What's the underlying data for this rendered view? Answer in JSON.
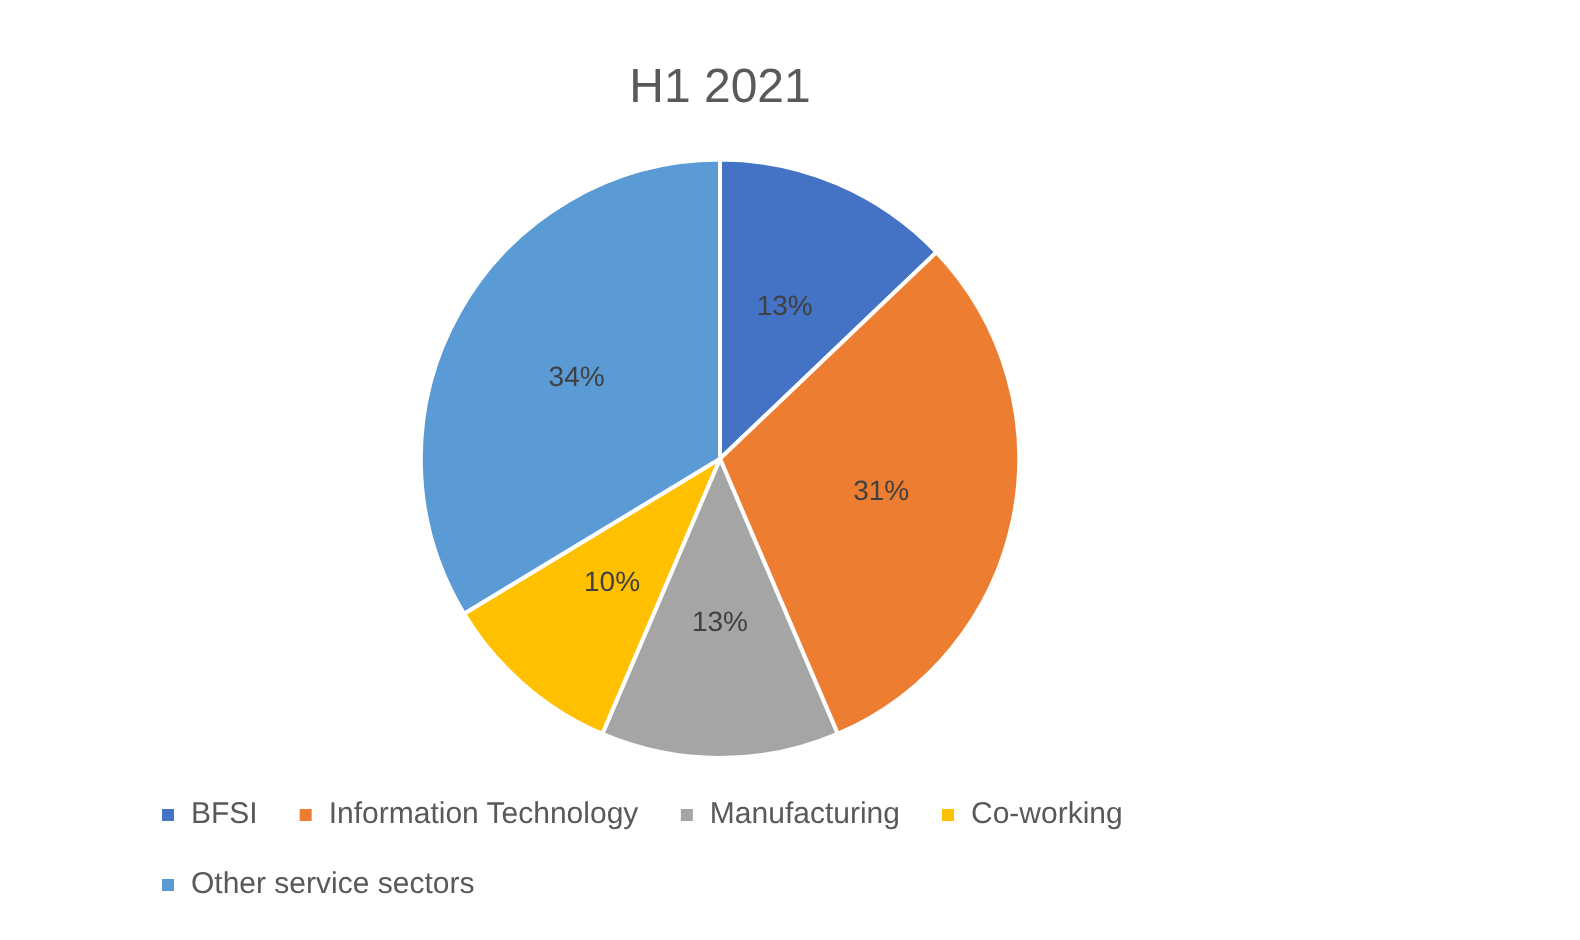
{
  "chart_data": {
    "type": "pie",
    "title": "H1 2021",
    "categories": [
      "BFSI",
      "Information Technology",
      "Manufacturing",
      "Co-working",
      "Other service sectors"
    ],
    "values": [
      13,
      31,
      13,
      10,
      34
    ],
    "colors": [
      "#4472c4",
      "#ed7d31",
      "#a5a5a5",
      "#ffc000",
      "#5b9bd5"
    ],
    "value_labels": [
      "13%",
      "31%",
      "13%",
      "10%",
      "34%"
    ],
    "legend": "bottom"
  }
}
